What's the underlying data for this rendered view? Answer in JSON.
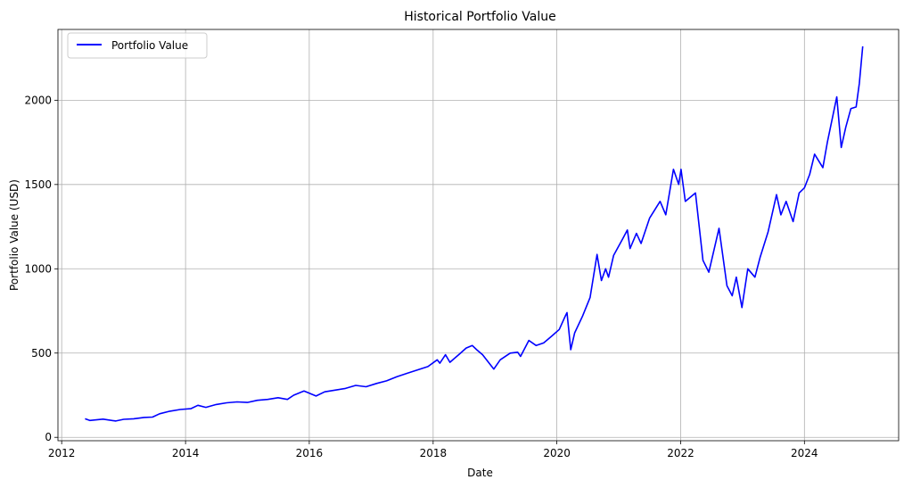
{
  "chart_data": {
    "type": "line",
    "title": "Historical Portfolio Value",
    "xlabel": "Date",
    "ylabel": "Portfolio Value (USD)",
    "xlim": [
      "2011-12-10",
      "2025-07-10"
    ],
    "ylim": [
      -20,
      2420
    ],
    "x_ticks": [
      "2012",
      "2014",
      "2016",
      "2018",
      "2020",
      "2022",
      "2024"
    ],
    "y_ticks": [
      0,
      500,
      1000,
      1500,
      2000
    ],
    "grid": true,
    "legend": "top-left",
    "series": [
      {
        "name": "Portfolio Value",
        "color": "#0000ff",
        "points": [
          [
            "2012-05-18",
            110
          ],
          [
            "2012-06-15",
            100
          ],
          [
            "2012-09-01",
            108
          ],
          [
            "2012-11-15",
            97
          ],
          [
            "2013-01-01",
            107
          ],
          [
            "2013-03-01",
            110
          ],
          [
            "2013-05-01",
            118
          ],
          [
            "2013-06-20",
            120
          ],
          [
            "2013-08-01",
            140
          ],
          [
            "2013-10-01",
            155
          ],
          [
            "2013-12-01",
            165
          ],
          [
            "2014-02-01",
            170
          ],
          [
            "2014-03-15",
            190
          ],
          [
            "2014-05-01",
            178
          ],
          [
            "2014-07-01",
            195
          ],
          [
            "2014-09-01",
            205
          ],
          [
            "2014-11-01",
            210
          ],
          [
            "2015-01-01",
            207
          ],
          [
            "2015-03-01",
            220
          ],
          [
            "2015-05-01",
            225
          ],
          [
            "2015-07-01",
            235
          ],
          [
            "2015-08-25",
            225
          ],
          [
            "2015-10-01",
            250
          ],
          [
            "2015-12-01",
            275
          ],
          [
            "2016-02-10",
            245
          ],
          [
            "2016-04-01",
            270
          ],
          [
            "2016-06-01",
            280
          ],
          [
            "2016-08-01",
            290
          ],
          [
            "2016-10-01",
            308
          ],
          [
            "2016-12-01",
            300
          ],
          [
            "2017-02-01",
            320
          ],
          [
            "2017-04-01",
            335
          ],
          [
            "2017-06-01",
            360
          ],
          [
            "2017-08-01",
            380
          ],
          [
            "2017-10-01",
            400
          ],
          [
            "2017-12-01",
            420
          ],
          [
            "2018-01-25",
            460
          ],
          [
            "2018-02-10",
            440
          ],
          [
            "2018-03-15",
            490
          ],
          [
            "2018-04-10",
            445
          ],
          [
            "2018-06-01",
            490
          ],
          [
            "2018-07-15",
            530
          ],
          [
            "2018-08-20",
            545
          ],
          [
            "2018-09-15",
            520
          ],
          [
            "2018-10-20",
            490
          ],
          [
            "2018-12-25",
            405
          ],
          [
            "2019-02-01",
            460
          ],
          [
            "2019-04-01",
            500
          ],
          [
            "2019-05-15",
            505
          ],
          [
            "2019-06-01",
            480
          ],
          [
            "2019-07-20",
            575
          ],
          [
            "2019-09-01",
            545
          ],
          [
            "2019-10-15",
            560
          ],
          [
            "2019-12-01",
            600
          ],
          [
            "2020-01-15",
            640
          ],
          [
            "2020-02-20",
            720
          ],
          [
            "2020-03-01",
            740
          ],
          [
            "2020-03-23",
            520
          ],
          [
            "2020-04-15",
            620
          ],
          [
            "2020-06-01",
            720
          ],
          [
            "2020-07-15",
            830
          ],
          [
            "2020-08-25",
            1085
          ],
          [
            "2020-09-20",
            930
          ],
          [
            "2020-10-15",
            1000
          ],
          [
            "2020-11-01",
            950
          ],
          [
            "2020-12-01",
            1080
          ],
          [
            "2021-01-25",
            1180
          ],
          [
            "2021-02-20",
            1230
          ],
          [
            "2021-03-08",
            1120
          ],
          [
            "2021-04-15",
            1210
          ],
          [
            "2021-05-12",
            1150
          ],
          [
            "2021-07-01",
            1300
          ],
          [
            "2021-09-01",
            1400
          ],
          [
            "2021-10-05",
            1320
          ],
          [
            "2021-11-19",
            1590
          ],
          [
            "2021-12-20",
            1500
          ],
          [
            "2022-01-03",
            1590
          ],
          [
            "2022-01-28",
            1400
          ],
          [
            "2022-03-29",
            1450
          ],
          [
            "2022-05-12",
            1050
          ],
          [
            "2022-06-16",
            980
          ],
          [
            "2022-08-15",
            1240
          ],
          [
            "2022-10-01",
            900
          ],
          [
            "2022-11-01",
            840
          ],
          [
            "2022-11-25",
            950
          ],
          [
            "2022-12-28",
            770
          ],
          [
            "2023-02-01",
            1000
          ],
          [
            "2023-03-15",
            950
          ],
          [
            "2023-04-15",
            1070
          ],
          [
            "2023-06-01",
            1220
          ],
          [
            "2023-07-20",
            1440
          ],
          [
            "2023-08-15",
            1320
          ],
          [
            "2023-09-15",
            1400
          ],
          [
            "2023-10-26",
            1280
          ],
          [
            "2023-12-01",
            1450
          ],
          [
            "2024-01-01",
            1480
          ],
          [
            "2024-02-01",
            1560
          ],
          [
            "2024-03-01",
            1680
          ],
          [
            "2024-04-19",
            1600
          ],
          [
            "2024-05-15",
            1750
          ],
          [
            "2024-07-10",
            2020
          ],
          [
            "2024-08-05",
            1720
          ],
          [
            "2024-09-01",
            1840
          ],
          [
            "2024-10-01",
            1950
          ],
          [
            "2024-11-01",
            1960
          ],
          [
            "2024-11-20",
            2100
          ],
          [
            "2024-12-10",
            2320
          ]
        ]
      }
    ]
  }
}
